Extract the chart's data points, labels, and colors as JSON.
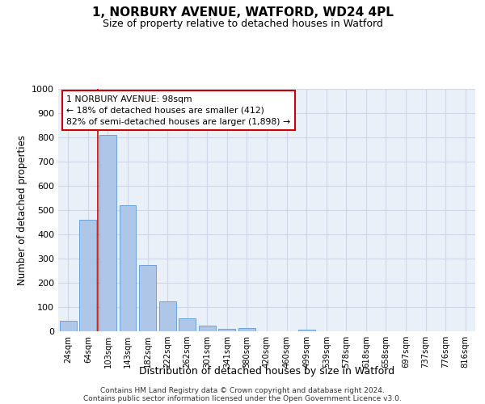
{
  "title": "1, NORBURY AVENUE, WATFORD, WD24 4PL",
  "subtitle": "Size of property relative to detached houses in Watford",
  "xlabel": "Distribution of detached houses by size in Watford",
  "ylabel": "Number of detached properties",
  "footer_line1": "Contains HM Land Registry data © Crown copyright and database right 2024.",
  "footer_line2": "Contains public sector information licensed under the Open Government Licence v3.0.",
  "categories": [
    "24sqm",
    "64sqm",
    "103sqm",
    "143sqm",
    "182sqm",
    "222sqm",
    "262sqm",
    "301sqm",
    "341sqm",
    "380sqm",
    "420sqm",
    "460sqm",
    "499sqm",
    "539sqm",
    "578sqm",
    "618sqm",
    "658sqm",
    "697sqm",
    "737sqm",
    "776sqm",
    "816sqm"
  ],
  "values": [
    42,
    460,
    810,
    520,
    272,
    125,
    55,
    22,
    10,
    12,
    0,
    0,
    8,
    0,
    0,
    0,
    0,
    0,
    0,
    0,
    0
  ],
  "bar_color": "#aec6e8",
  "bar_edge_color": "#5b9bd5",
  "grid_color": "#d0d8e8",
  "background_color": "#eaf0f8",
  "annotation_box_text": "1 NORBURY AVENUE: 98sqm\n← 18% of detached houses are smaller (412)\n82% of semi-detached houses are larger (1,898) →",
  "annotation_box_color": "#cc0000",
  "red_line_x": 1.5,
  "ylim": [
    0,
    1000
  ],
  "yticks": [
    0,
    100,
    200,
    300,
    400,
    500,
    600,
    700,
    800,
    900,
    1000
  ]
}
